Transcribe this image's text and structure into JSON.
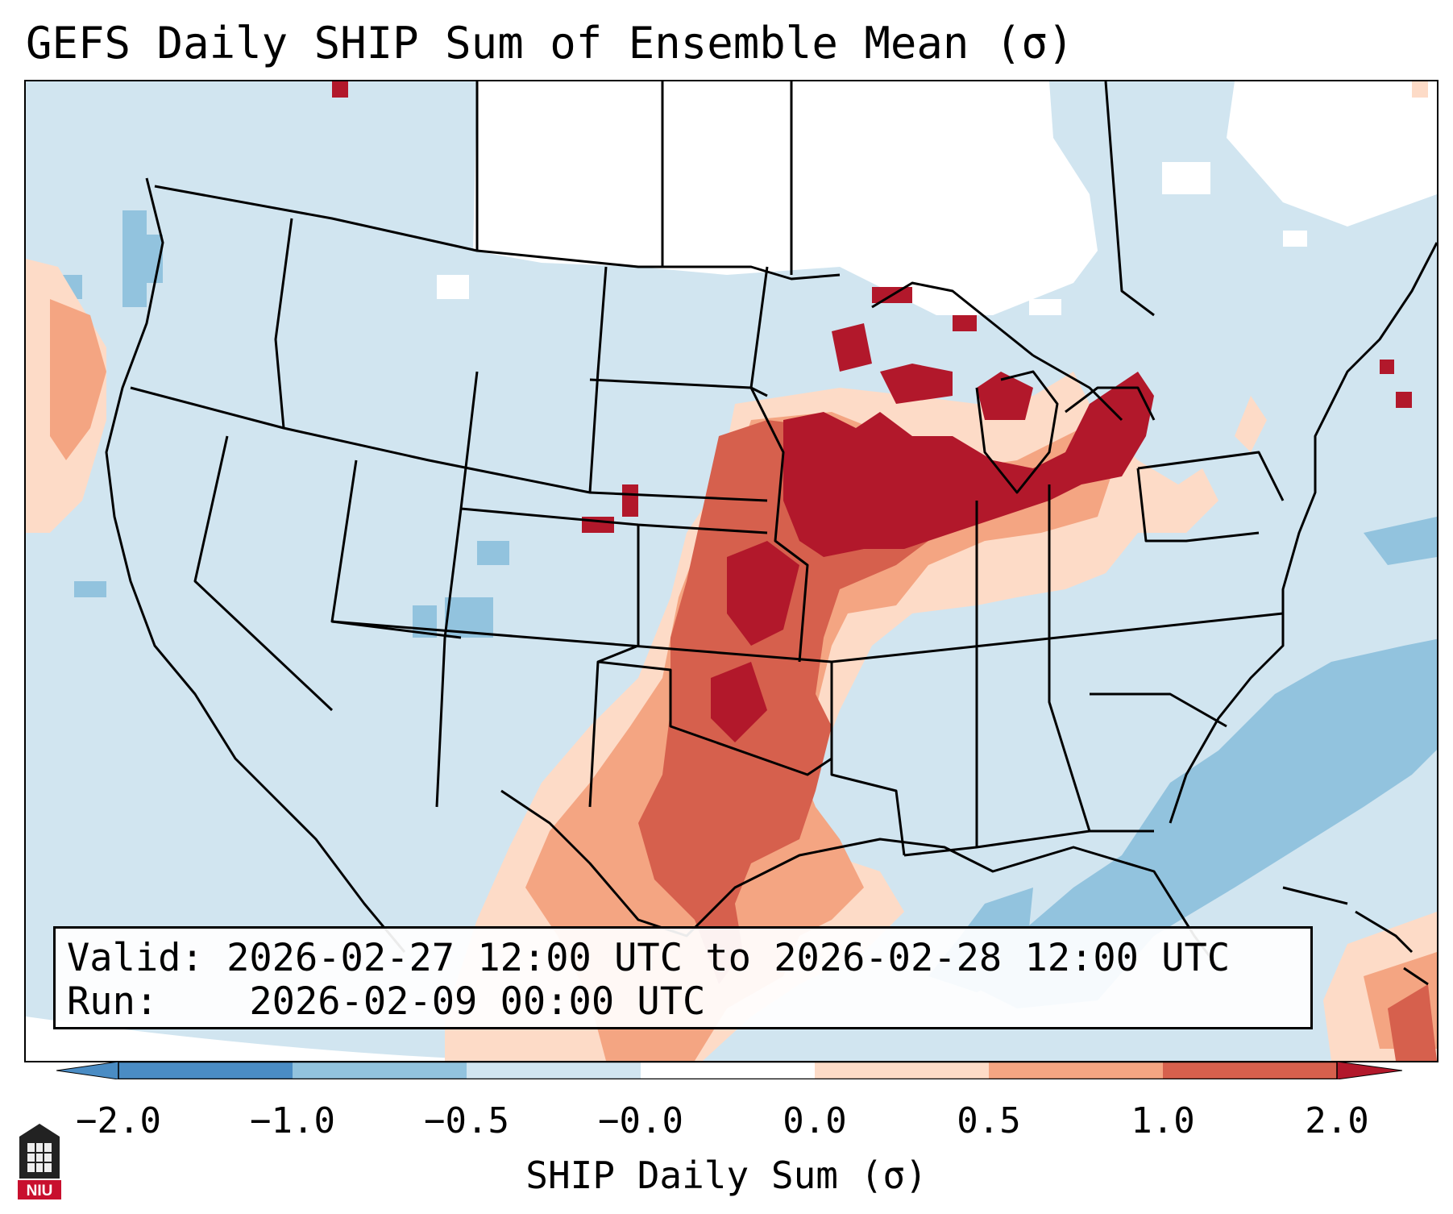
{
  "title": "GEFS Daily SHIP Sum of Ensemble Mean (σ)",
  "info": {
    "valid_label": "Valid:",
    "valid_value": "2026-02-27 12:00 UTC to 2026-02-28 12:00 UTC",
    "run_label": "Run:",
    "run_value": "2026-02-09 00:00 UTC"
  },
  "colorbar": {
    "label": "SHIP Daily Sum (σ)",
    "ticks": [
      "−2.0",
      "−1.0",
      "−0.5",
      "−0.0",
      "0.0",
      "0.5",
      "1.0",
      "2.0"
    ],
    "colors": {
      "lt_-1": "#4a8cc4",
      "-1_-0.5": "#92c3de",
      "-0.5_0": "#d1e5f0",
      "0_0.5": "#fddbc7",
      "0.5_1": "#f4a582",
      "1_2": "#d6604d",
      "gt_2": "#b2182b"
    }
  },
  "logo": {
    "text": "NIU"
  },
  "colors": {
    "background_ocean": "#d1e5f0",
    "no_data": "#ffffff",
    "lines": "#000000"
  }
}
